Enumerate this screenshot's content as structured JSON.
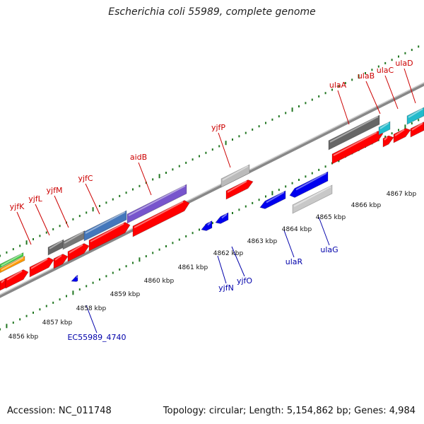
{
  "title": "Escherichia coli 55989, complete genome",
  "footer": {
    "accession": "Accession: NC_011748",
    "summary": "Topology: circular; Length: 5,154,862 bp; Genes: 4,984"
  },
  "colors": {
    "forward_label": "#cc0000",
    "reverse_label": "#0000aa",
    "forward_gene": "#ff0000",
    "reverse_gene": "#0000ee",
    "tick": "#227722",
    "backbone": "#999999"
  },
  "kbp_labels": [
    "4856 kbp",
    "4857 kbp",
    "4858 kbp",
    "4859 kbp",
    "4860 kbp",
    "4861 kbp",
    "4862 kbp",
    "4863 kbp",
    "4864 kbp",
    "4865 kbp",
    "4866 kbp",
    "4867 kbp"
  ],
  "forward_labels": [
    "yjfK",
    "yjfL",
    "yjfM",
    "yjfC",
    "aidB",
    "yjfP",
    "ulaA",
    "ulaB",
    "ulaC",
    "ulaD"
  ],
  "reverse_labels": [
    "EC55989_4740",
    "yjfN",
    "yjfO",
    "ulaR",
    "ulaG"
  ]
}
